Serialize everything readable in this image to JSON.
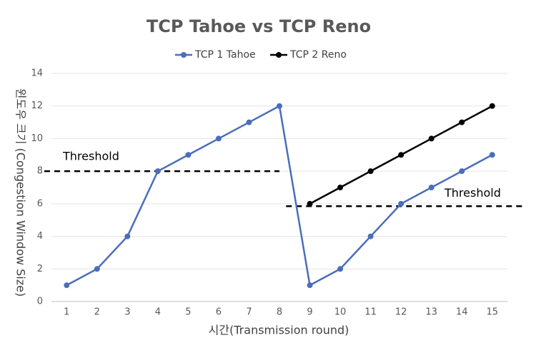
{
  "chart_data": {
    "type": "line",
    "title": "TCP Tahoe vs TCP Reno",
    "x_label": "시간(Transmission round)",
    "y_label": "윈도우 크기 (Congestion Window Size)",
    "categories": [
      "1",
      "2",
      "3",
      "4",
      "5",
      "6",
      "7",
      "8",
      "9",
      "10",
      "11",
      "12",
      "13",
      "14",
      "15"
    ],
    "series": [
      {
        "name": "TCP 1 Tahoe",
        "color": "#4a6ebb",
        "values": [
          1,
          2,
          4,
          8,
          9,
          10,
          11,
          12,
          1,
          2,
          4,
          6,
          7,
          8,
          9
        ]
      },
      {
        "name": "TCP 2 Reno",
        "color": "#000000",
        "values": [
          null,
          null,
          null,
          null,
          null,
          null,
          null,
          null,
          6,
          7,
          8,
          9,
          10,
          11,
          12
        ]
      }
    ],
    "ylim": [
      0,
      14
    ],
    "yticks": [
      0,
      2,
      4,
      6,
      8,
      10,
      12,
      14
    ],
    "grid": true,
    "legend": "top",
    "annotations": [
      {
        "text": "Threshold",
        "value": 8
      },
      {
        "text": "Threshold",
        "value": 5.85
      }
    ]
  }
}
